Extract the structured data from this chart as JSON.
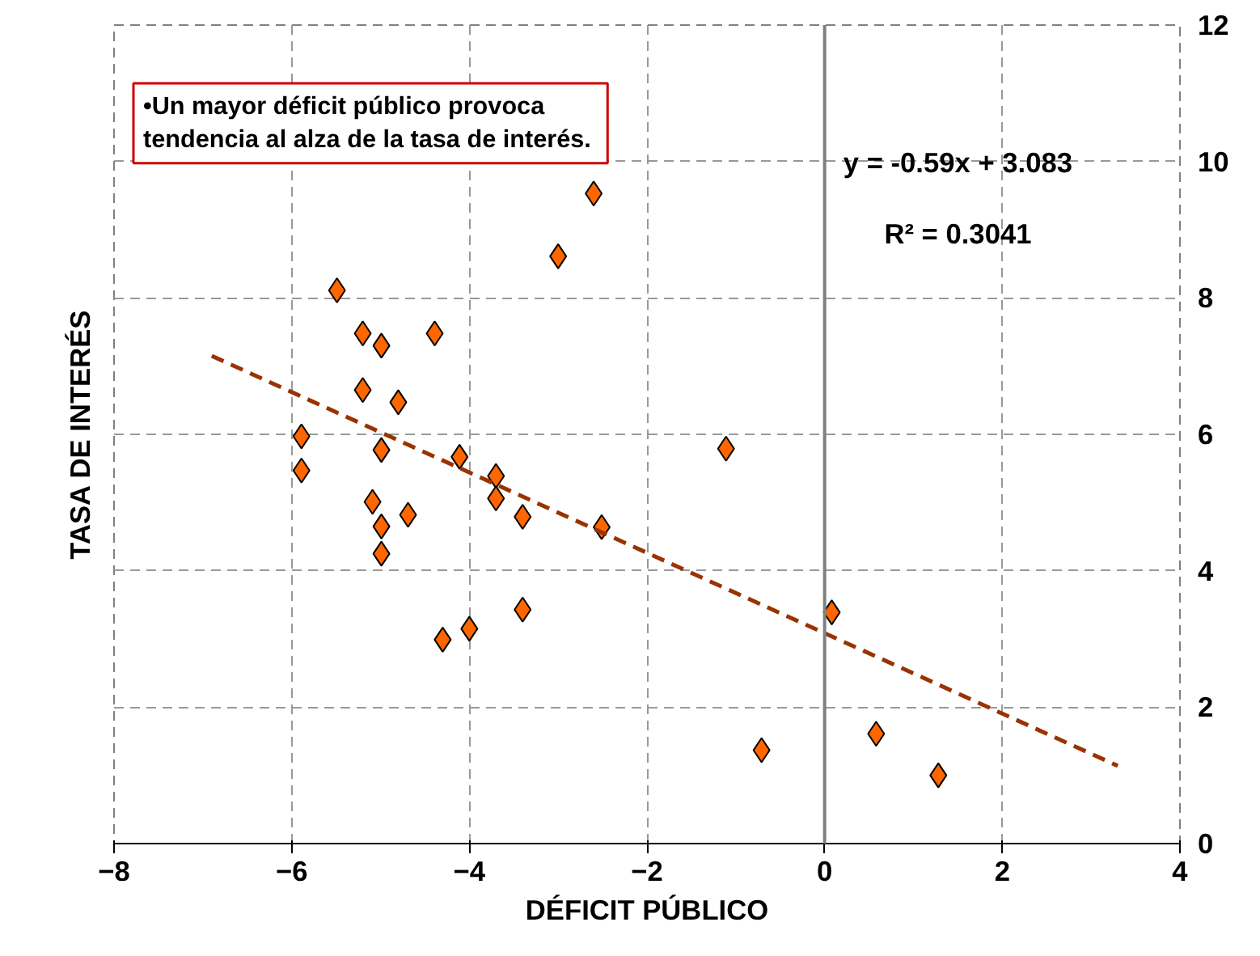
{
  "chart_data": {
    "type": "scatter",
    "xlabel": "DÉFICIT PÚBLICO",
    "ylabel": "TASA DE INTERÉS",
    "xlim": [
      -8,
      4
    ],
    "xticks": [
      -8,
      -6,
      -4,
      -2,
      0,
      2,
      4
    ],
    "ylim": [
      0,
      12
    ],
    "yticks": [
      0,
      2,
      4,
      6,
      8,
      10,
      12
    ],
    "grid": true,
    "ref_lines": [
      {
        "axis": "x",
        "value": 0,
        "color": "#808080",
        "line_style": "solid"
      }
    ],
    "annotations": [
      "•Un mayor déficit público provoca\n tendencia al alza de la tasa de interés.",
      "y = -0.59x + 3.083",
      "R² = 0.3041"
    ],
    "series": [
      {
        "color": "#ff6600",
        "marker": "diamond",
        "x": [
          -2.6,
          -3.0,
          -5.49,
          -5.2,
          -4.99,
          -4.39,
          -5.2,
          -4.8,
          -5.89,
          -5.89,
          -4.99,
          -4.11,
          -3.7,
          -3.7,
          -3.4,
          -2.51,
          -5.09,
          -4.99,
          -4.69,
          -4.99,
          -3.4,
          -4.0,
          -4.3,
          -1.11,
          0.08,
          -0.71,
          0.58,
          1.28
        ],
        "values": [
          9.53,
          8.61,
          8.11,
          7.48,
          7.3,
          7.48,
          6.65,
          6.47,
          5.97,
          5.47,
          5.77,
          5.67,
          5.39,
          5.06,
          4.79,
          4.64,
          5.01,
          4.65,
          4.82,
          4.25,
          3.43,
          3.15,
          2.99,
          5.79,
          3.39,
          1.37,
          1.61,
          1.0
        ]
      },
      {
        "type": "line",
        "color": "#993300",
        "line_style": "dashed",
        "x": [
          -6.9,
          3.3
        ],
        "values": [
          7.15,
          1.14
        ]
      }
    ]
  }
}
